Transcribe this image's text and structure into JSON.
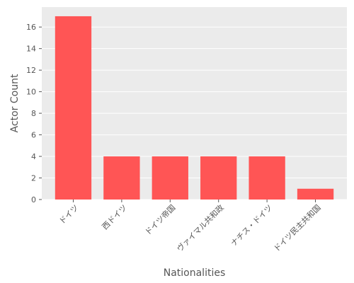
{
  "chart_data": {
    "type": "bar",
    "title": "",
    "xlabel": "Nationalities",
    "ylabel": "Actor Count",
    "categories": [
      "ドイツ",
      "西ドイツ",
      "ドイツ帝国",
      "ヴァイマル共和政",
      "ナチス・ドイツ",
      "ドイツ民主共和国"
    ],
    "values": [
      17,
      4,
      4,
      4,
      4,
      1
    ],
    "yticks": [
      0,
      2,
      4,
      6,
      8,
      10,
      12,
      14,
      16
    ],
    "ylim": [
      0,
      17.85
    ],
    "grid": true,
    "legend": "none",
    "colors": {
      "bar": "#FF5555",
      "plot_background": "#EBEBEB",
      "grid": "#FFFFFF",
      "text": "#555555"
    }
  }
}
